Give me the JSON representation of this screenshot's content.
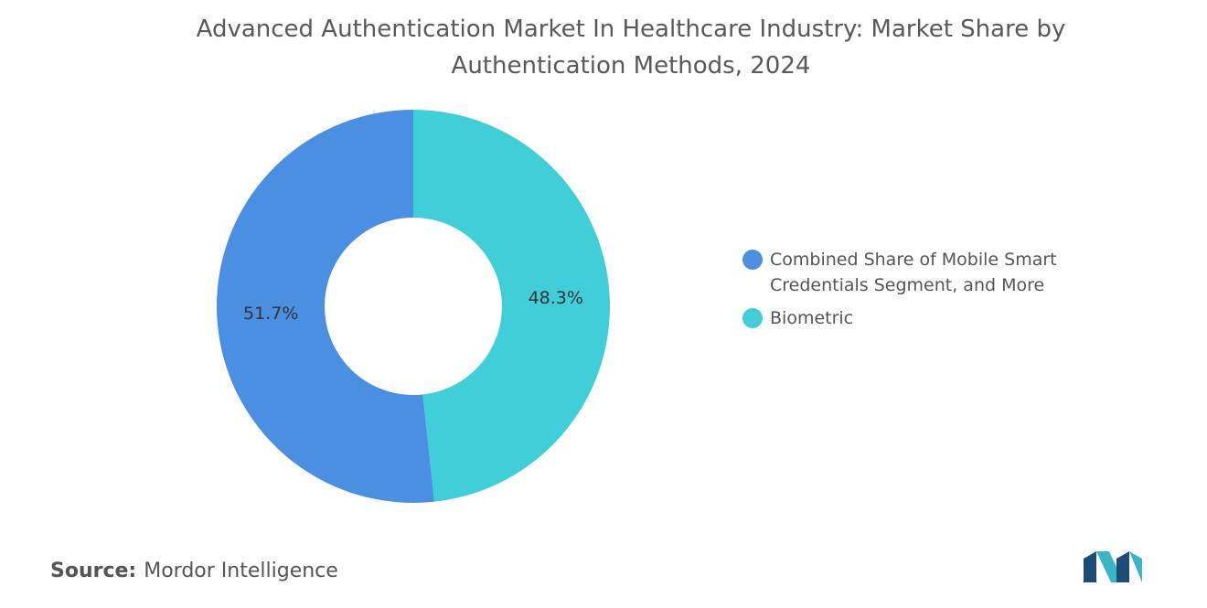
{
  "chart_data": {
    "type": "donut",
    "title": "Advanced Authentication Market In Healthcare Industry: Market Share by Authentication Methods, 2024",
    "categories": [
      "Combined Share of Mobile Smart Credentials Segment, and More",
      "Biometric"
    ],
    "values": [
      51.7,
      48.3
    ],
    "value_labels": [
      "51.7%",
      "48.3%"
    ],
    "colors": [
      "#4a8fe2",
      "#40cfd9"
    ]
  },
  "source_label": "Source:",
  "source": "Mordor Intelligence"
}
